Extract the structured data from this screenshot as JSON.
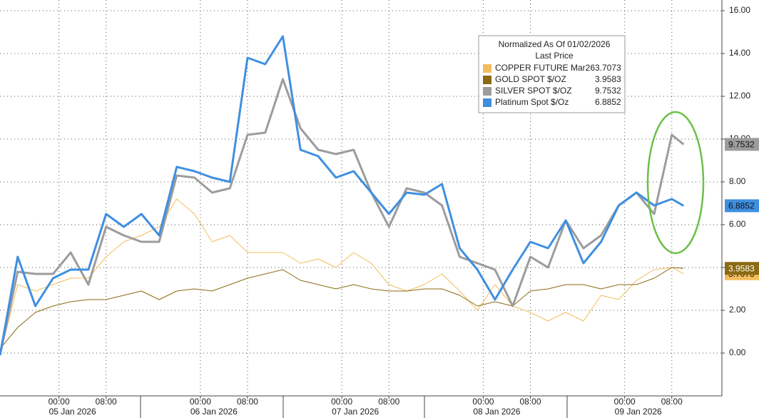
{
  "chart_data": {
    "type": "line",
    "legend_title": "Normalized As Of 01/02/2026",
    "legend_subtitle": "Last Price",
    "x": [
      "2026-01-04T14:00",
      "2026-01-04T17:00",
      "2026-01-04T20:00",
      "2026-01-04T23:00",
      "2026-01-05T02:00",
      "2026-01-05T05:00",
      "2026-01-05T08:00",
      "2026-01-05T11:00",
      "2026-01-05T14:00",
      "2026-01-05T17:00",
      "2026-01-05T20:00",
      "2026-01-05T23:00",
      "2026-01-06T02:00",
      "2026-01-06T05:00",
      "2026-01-06T08:00",
      "2026-01-06T11:00",
      "2026-01-06T14:00",
      "2026-01-06T17:00",
      "2026-01-06T20:00",
      "2026-01-06T23:00",
      "2026-01-07T02:00",
      "2026-01-07T05:00",
      "2026-01-07T08:00",
      "2026-01-07T11:00",
      "2026-01-07T14:00",
      "2026-01-07T17:00",
      "2026-01-07T20:00",
      "2026-01-07T23:00",
      "2026-01-08T02:00",
      "2026-01-08T05:00",
      "2026-01-08T08:00",
      "2026-01-08T11:00",
      "2026-01-08T14:00",
      "2026-01-08T17:00",
      "2026-01-08T20:00",
      "2026-01-08T23:00",
      "2026-01-09T02:00",
      "2026-01-09T05:00",
      "2026-01-09T08:00",
      "2026-01-09T10:00"
    ],
    "series": [
      {
        "name": "COPPER FUTURE Mar26",
        "color": "#f2bd5c",
        "width": 1,
        "last": 3.7073,
        "values": [
          -0.1,
          3.2,
          2.9,
          3.2,
          3.5,
          3.5,
          4.5,
          5.2,
          5.5,
          5.9,
          7.2,
          6.5,
          5.2,
          5.5,
          4.7,
          4.7,
          4.7,
          4.2,
          4.4,
          4.0,
          4.7,
          4.2,
          3.2,
          2.9,
          3.2,
          3.7,
          2.9,
          2.0,
          3.2,
          2.2,
          1.9,
          1.5,
          1.9,
          1.5,
          2.7,
          2.5,
          3.4,
          3.9,
          4.0,
          3.7073
        ]
      },
      {
        "name": "GOLD SPOT $/OZ",
        "color": "#8c6a12",
        "width": 1,
        "last": 3.9583,
        "values": [
          0.2,
          1.2,
          1.9,
          2.2,
          2.4,
          2.5,
          2.5,
          2.7,
          2.9,
          2.5,
          2.9,
          3.0,
          2.9,
          3.2,
          3.5,
          3.7,
          3.9,
          3.4,
          3.2,
          3.0,
          3.2,
          3.0,
          2.9,
          2.9,
          3.0,
          3.0,
          2.7,
          2.2,
          2.4,
          2.2,
          2.9,
          3.0,
          3.2,
          3.2,
          3.0,
          3.2,
          3.2,
          3.5,
          4.0,
          3.9583
        ]
      },
      {
        "name": "SILVER SPOT $/OZ",
        "color": "#9c9c9c",
        "width": 3,
        "last": 9.7532,
        "values": [
          -0.1,
          3.8,
          3.7,
          3.7,
          4.7,
          3.2,
          5.9,
          5.5,
          5.2,
          5.2,
          8.3,
          8.2,
          7.5,
          7.7,
          10.2,
          10.3,
          12.8,
          10.5,
          9.5,
          9.3,
          9.5,
          7.5,
          5.9,
          7.7,
          7.5,
          6.9,
          4.5,
          4.2,
          3.9,
          2.2,
          4.5,
          4.0,
          6.2,
          4.9,
          5.5,
          6.9,
          7.5,
          6.5,
          10.2,
          9.7532
        ]
      },
      {
        "name": "Platinum Spot $/Oz",
        "color": "#3f8fe0",
        "width": 3,
        "last": 6.8852,
        "values": [
          -0.1,
          4.5,
          2.2,
          3.5,
          3.9,
          3.9,
          6.5,
          5.9,
          6.5,
          5.5,
          8.7,
          8.5,
          8.2,
          8.0,
          13.8,
          13.5,
          14.8,
          9.5,
          9.2,
          8.2,
          8.5,
          7.5,
          6.5,
          7.5,
          7.4,
          7.9,
          4.9,
          3.9,
          2.5,
          3.9,
          5.2,
          4.9,
          6.2,
          4.2,
          5.2,
          6.9,
          7.5,
          6.9,
          7.2,
          6.8852
        ]
      }
    ],
    "xlim": [
      "2026-01-04T14:00",
      "2026-01-09T16:30"
    ],
    "xticks": [
      {
        "value": "2026-01-05T00:00",
        "label": "00:00"
      },
      {
        "value": "2026-01-05T08:00",
        "label": "08:00"
      },
      {
        "value": "2026-01-06T00:00",
        "label": "00:00"
      },
      {
        "value": "2026-01-06T08:00",
        "label": "08:00"
      },
      {
        "value": "2026-01-07T00:00",
        "label": "00:00"
      },
      {
        "value": "2026-01-07T08:00",
        "label": "08:00"
      },
      {
        "value": "2026-01-08T00:00",
        "label": "00:00"
      },
      {
        "value": "2026-01-08T08:00",
        "label": "08:00"
      },
      {
        "value": "2026-01-09T00:00",
        "label": "00:00"
      },
      {
        "value": "2026-01-09T08:00",
        "label": "08:00"
      }
    ],
    "xdates": [
      {
        "value": "2026-01-05T00:00",
        "label": "05 Jan 2026"
      },
      {
        "value": "2026-01-06T00:00",
        "label": "06 Jan 2026"
      },
      {
        "value": "2026-01-07T00:00",
        "label": "07 Jan 2026"
      },
      {
        "value": "2026-01-08T00:00",
        "label": "08 Jan 2026"
      },
      {
        "value": "2026-01-09T00:00",
        "label": "09 Jan 2026"
      }
    ],
    "ylim": [
      -2,
      16.5
    ],
    "yticks": [
      {
        "value": 0,
        "label": "0.00"
      },
      {
        "value": 2,
        "label": "2.00"
      },
      {
        "value": 4,
        "label": "4.00"
      },
      {
        "value": 6,
        "label": "6.00"
      },
      {
        "value": 8,
        "label": "8.00"
      },
      {
        "value": 10,
        "label": "10.00"
      },
      {
        "value": 12,
        "label": "12.00"
      },
      {
        "value": 14,
        "label": "14.00"
      },
      {
        "value": 16,
        "label": "16.00"
      }
    ],
    "grid": true
  }
}
